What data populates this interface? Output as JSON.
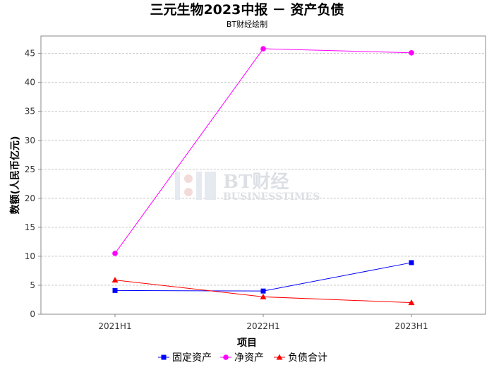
{
  "chart_data": {
    "type": "line",
    "title": "三元生物2023中报 － 资产负债",
    "subtitle": "BT财经绘制",
    "xlabel": "项目",
    "ylabel": "数额(人民币亿元)",
    "categories": [
      "2021H1",
      "2022H1",
      "2023H1"
    ],
    "ylim": [
      0,
      48
    ],
    "yticks": [
      0,
      5,
      10,
      15,
      20,
      25,
      30,
      35,
      40,
      45
    ],
    "grid": true,
    "legend_position": "bottom",
    "series": [
      {
        "name": "固定资产",
        "values": [
          4.1,
          4.0,
          8.9
        ],
        "color": "#0000ff",
        "marker": "square"
      },
      {
        "name": "净资产",
        "values": [
          10.5,
          45.8,
          45.1
        ],
        "color": "#ff00ff",
        "marker": "circle"
      },
      {
        "name": "负债合计",
        "values": [
          5.9,
          3.0,
          2.0
        ],
        "color": "#ff0000",
        "marker": "triangle"
      }
    ]
  },
  "watermark": {
    "brand": "BT财经",
    "tagline": "BUSINESSTIMES"
  }
}
